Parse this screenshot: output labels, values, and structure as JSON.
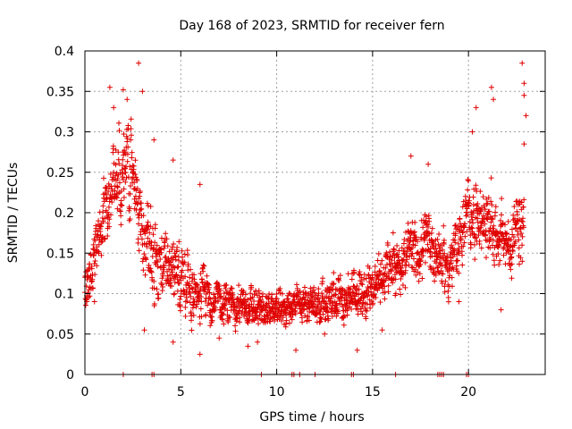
{
  "chart_data": {
    "type": "scatter",
    "title": "Day 168 of 2023, SRMTID for receiver fern",
    "xlabel": "GPS time / hours",
    "ylabel": "SRMTID / TECUs",
    "xlim": [
      0,
      24
    ],
    "ylim": [
      0,
      0.4
    ],
    "x_ticks": [
      0,
      5,
      10,
      15,
      20
    ],
    "x_tick_labels": [
      "0",
      "5",
      "10",
      "15",
      "20"
    ],
    "y_ticks": [
      0,
      0.05,
      0.1,
      0.15,
      0.2,
      0.25,
      0.3,
      0.35,
      0.4
    ],
    "y_tick_labels": [
      "0",
      "0.05",
      "0.1",
      "0.15",
      "0.2",
      "0.25",
      "0.3",
      "0.35",
      "0.4"
    ],
    "grid": true,
    "legend": "none",
    "marker": "+",
    "series_color": "#e00000",
    "series": [
      {
        "name": "SRMTID",
        "profile": [
          [
            0.0,
            0.12,
            0.05
          ],
          [
            0.5,
            0.14,
            0.05
          ],
          [
            1.0,
            0.2,
            0.07
          ],
          [
            1.5,
            0.24,
            0.08
          ],
          [
            2.0,
            0.25,
            0.08
          ],
          [
            2.5,
            0.24,
            0.09
          ],
          [
            3.0,
            0.17,
            0.07
          ],
          [
            3.5,
            0.16,
            0.08
          ],
          [
            4.0,
            0.13,
            0.06
          ],
          [
            5.0,
            0.12,
            0.06
          ],
          [
            6.0,
            0.1,
            0.05
          ],
          [
            7.0,
            0.09,
            0.04
          ],
          [
            8.0,
            0.085,
            0.035
          ],
          [
            9.0,
            0.08,
            0.035
          ],
          [
            10.0,
            0.08,
            0.03
          ],
          [
            11.0,
            0.085,
            0.035
          ],
          [
            12.0,
            0.09,
            0.035
          ],
          [
            13.0,
            0.09,
            0.04
          ],
          [
            14.0,
            0.1,
            0.04
          ],
          [
            15.0,
            0.11,
            0.05
          ],
          [
            16.0,
            0.13,
            0.05
          ],
          [
            17.0,
            0.15,
            0.06
          ],
          [
            18.0,
            0.16,
            0.06
          ],
          [
            19.0,
            0.13,
            0.05
          ],
          [
            20.0,
            0.2,
            0.06
          ],
          [
            21.0,
            0.19,
            0.07
          ],
          [
            22.0,
            0.16,
            0.05
          ],
          [
            22.9,
            0.18,
            0.07
          ]
        ],
        "points": [
          [
            1.3,
            0.355
          ],
          [
            2.0,
            0.352
          ],
          [
            2.8,
            0.385
          ],
          [
            3.0,
            0.35
          ],
          [
            2.2,
            0.34
          ],
          [
            1.5,
            0.33
          ],
          [
            3.6,
            0.29
          ],
          [
            4.6,
            0.265
          ],
          [
            6.0,
            0.235
          ],
          [
            17.0,
            0.27
          ],
          [
            17.9,
            0.26
          ],
          [
            21.2,
            0.355
          ],
          [
            21.3,
            0.34
          ],
          [
            20.4,
            0.33
          ],
          [
            20.2,
            0.3
          ],
          [
            22.8,
            0.385
          ],
          [
            22.9,
            0.36
          ],
          [
            22.9,
            0.345
          ],
          [
            23.0,
            0.32
          ],
          [
            22.9,
            0.285
          ],
          [
            0.1,
            0.09
          ],
          [
            0.5,
            0.09
          ],
          [
            8.5,
            0.035
          ],
          [
            9.0,
            0.04
          ],
          [
            6.0,
            0.025
          ],
          [
            11.0,
            0.03
          ],
          [
            14.2,
            0.03
          ],
          [
            4.6,
            0.04
          ],
          [
            3.1,
            0.055
          ],
          [
            7.0,
            0.045
          ],
          [
            12.5,
            0.05
          ],
          [
            15.5,
            0.055
          ],
          [
            19.5,
            0.09
          ],
          [
            21.7,
            0.08
          ]
        ]
      }
    ],
    "zero_points_x": [
      2.0,
      3.5,
      3.6,
      9.2,
      10.8,
      10.9,
      11.2,
      12.0,
      13.9,
      14.0,
      16.2,
      18.4,
      18.5,
      18.6,
      18.7,
      19.9,
      20.0
    ]
  }
}
